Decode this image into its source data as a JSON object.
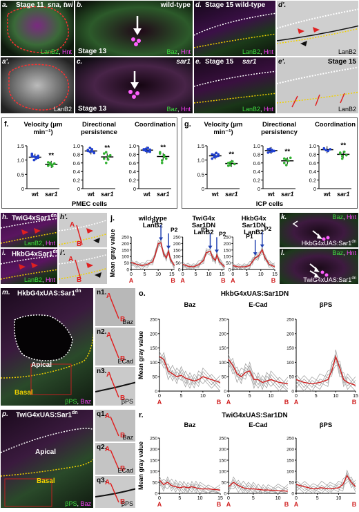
{
  "panels": {
    "a": {
      "letter": "a.",
      "title": "Stage 11",
      "genes": "sna, twi",
      "markers": [
        "LanB2",
        "Hnt"
      ]
    },
    "a2": {
      "letter": "a'.",
      "marker": "LanB2"
    },
    "b": {
      "letter": "b.",
      "title": "wild-type",
      "stage": "Stage 13",
      "markers": [
        "Baz",
        "Hnt"
      ]
    },
    "c": {
      "letter": "c.",
      "title": "sar1",
      "stage": "Stage 13",
      "markers": [
        "Baz",
        "Hnt"
      ]
    },
    "d": {
      "letter": "d.",
      "title": "Stage 15 wild-type",
      "markers": [
        "LanB2",
        "Hnt"
      ]
    },
    "d2": {
      "letter": "d'.",
      "marker": "LanB2"
    },
    "e": {
      "letter": "e.",
      "title": "Stage 15",
      "gene": "sar1",
      "markers": [
        "LanB2",
        "Hnt"
      ]
    },
    "e2": {
      "letter": "e'.",
      "title": "Stage 15",
      "marker": "LanB2"
    },
    "h": {
      "letter": "h.",
      "title": "TwiG4xSar1",
      "sup": "dn",
      "markers": [
        "LanB2",
        "Hnt"
      ]
    },
    "i": {
      "letter": "i.",
      "title": "HkbG4xSar1",
      "sup": "dn",
      "markers": [
        "LanB2",
        "Hnt"
      ]
    },
    "h2": {
      "letter": "h'.",
      "a": "A",
      "b": "B"
    },
    "i2": {
      "letter": "i'.",
      "a": "A",
      "b": "B"
    },
    "k": {
      "letter": "k.",
      "markers": [
        "Baz",
        "Hnt"
      ],
      "genotype": "HkbG4xUAS:Sar1",
      "sup": "dn"
    },
    "l": {
      "letter": "l.",
      "markers": [
        "Baz",
        "Hnt"
      ],
      "genotype": "TwiG4xUAS:Sar1",
      "sup": "dn"
    },
    "m": {
      "letter": "m.",
      "title": "HkbG4xUAS:Sar1",
      "sup": "dn",
      "apical": "Apical",
      "basal": "Basal",
      "markers": [
        "βPS",
        "Baz"
      ]
    },
    "p": {
      "letter": "p.",
      "title": "TwiG4xUAS:Sar1",
      "sup": "dn",
      "apical": "Apical",
      "basal": "Basal",
      "markers": [
        "βPS",
        "Baz"
      ]
    },
    "n": [
      {
        "letter": "n1.",
        "marker": "Baz"
      },
      {
        "letter": "n2.",
        "marker": "ECad"
      },
      {
        "letter": "n3.",
        "marker": "βPS"
      }
    ],
    "q": [
      {
        "letter": "q1.",
        "marker": "Baz"
      },
      {
        "letter": "q2.",
        "marker": "ECad"
      },
      {
        "letter": "q3.",
        "marker": "βPS"
      }
    ],
    "A": "A",
    "B": "B"
  },
  "chart_data": [
    {
      "id": "f",
      "type": "scatter",
      "letter": "f.",
      "group": "PMEC cells",
      "charts": [
        {
          "title": "Velocity (μm min⁻¹)",
          "categories": [
            "wt",
            "sar1"
          ],
          "ylim": [
            0,
            1.5
          ],
          "yticks": [
            0,
            0.5,
            1.0,
            1.5
          ],
          "means": [
            1.1,
            0.85
          ],
          "sig": "**",
          "points": [
            [
              1.18,
              1.12,
              1.05,
              1.15,
              1.22,
              1.0,
              1.1,
              1.08,
              1.14
            ],
            [
              0.92,
              0.85,
              0.78,
              0.88,
              0.8,
              0.9,
              0.84
            ]
          ]
        },
        {
          "title": "Directional persistence",
          "categories": [
            "wt",
            "sar1"
          ],
          "ylim": [
            0,
            1.0
          ],
          "yticks": [
            0,
            0.2,
            0.4,
            0.6,
            0.8,
            1.0
          ],
          "means": [
            0.88,
            0.74
          ],
          "sig": "**",
          "points": [
            [
              0.9,
              0.86,
              0.92,
              0.84,
              0.88,
              0.95,
              0.87,
              0.83,
              0.9
            ],
            [
              0.82,
              0.6,
              0.75,
              0.78,
              0.7,
              0.85,
              0.68
            ]
          ]
        },
        {
          "title": "Coordination",
          "categories": [
            "wt",
            "sar1"
          ],
          "ylim": [
            0,
            1.0
          ],
          "yticks": [
            0,
            0.2,
            0.4,
            0.6,
            0.8,
            1.0
          ],
          "means": [
            0.9,
            0.75
          ],
          "sig": "**",
          "points": [
            [
              0.92,
              0.88,
              0.95,
              0.86,
              0.9,
              0.93,
              0.87,
              0.91
            ],
            [
              0.82,
              0.6,
              0.78,
              0.7,
              0.85,
              0.66,
              0.74
            ]
          ]
        }
      ]
    },
    {
      "id": "g",
      "type": "scatter",
      "letter": "g.",
      "group": "ICP cells",
      "charts": [
        {
          "title": "Velocity (μm min⁻¹)",
          "categories": [
            "wt",
            "sar1"
          ],
          "ylim": [
            0,
            1.5
          ],
          "yticks": [
            0,
            0.5,
            1.0,
            1.5
          ],
          "means": [
            1.15,
            0.88
          ],
          "sig": "**",
          "points": [
            [
              1.2,
              1.1,
              1.25,
              1.15,
              1.05,
              1.18,
              1.12,
              1.2
            ],
            [
              0.9,
              0.82,
              0.95,
              0.86,
              0.8,
              0.92
            ]
          ]
        },
        {
          "title": "Directional persistency",
          "categories": [
            "wt",
            "sar1"
          ],
          "ylim": [
            0,
            1.0
          ],
          "yticks": [
            0,
            0.2,
            0.4,
            0.6,
            0.8,
            1.0
          ],
          "means": [
            0.89,
            0.65
          ],
          "sig": "**",
          "points": [
            [
              0.92,
              0.86,
              0.9,
              0.88,
              0.84,
              0.93,
              0.87
            ],
            [
              0.7,
              0.55,
              0.65,
              0.72,
              0.6,
              0.68
            ]
          ]
        },
        {
          "title": "Coordination",
          "categories": [
            "wt",
            "sar1"
          ],
          "ylim": [
            0,
            1.0
          ],
          "yticks": [
            0,
            0.2,
            0.4,
            0.6,
            0.8,
            1.0
          ],
          "means": [
            0.91,
            0.8
          ],
          "sig": "**",
          "points": [
            [
              0.93,
              0.9,
              0.88,
              0.92,
              0.94,
              0.9
            ],
            [
              0.82,
              0.7,
              0.86,
              0.78,
              0.84,
              0.76
            ]
          ]
        }
      ]
    },
    {
      "id": "j",
      "type": "line",
      "letter": "j.",
      "ylabel": "Mean gray value",
      "ylim": [
        0,
        250
      ],
      "yticks": [
        0,
        50,
        100,
        150,
        200,
        250
      ],
      "xlabel_a": "A",
      "xlabel_b": "B",
      "charts": [
        {
          "title": [
            "wild-type",
            "LanB2"
          ],
          "xticks": [
            0,
            5,
            10,
            15
          ],
          "xmax": 16,
          "peaks": [
            {
              "label": "P1",
              "x": 11
            },
            {
              "label": "P2",
              "x": 13.8
            }
          ],
          "mean": [
            [
              0,
              55
            ],
            [
              2,
              40
            ],
            [
              4,
              30
            ],
            [
              6,
              40
            ],
            [
              8,
              60
            ],
            [
              9,
              120
            ],
            [
              10,
              200
            ],
            [
              11,
              205
            ],
            [
              12,
              120
            ],
            [
              13,
              90
            ],
            [
              13.8,
              140
            ],
            [
              14.5,
              80
            ],
            [
              16,
              30
            ]
          ]
        },
        {
          "title": [
            "TwiG4x",
            "Sar1DN",
            "LanB2"
          ],
          "xticks": [
            0,
            5,
            10,
            15
          ],
          "xmax": 16,
          "peaks": [
            {
              "label": "P1",
              "x": 10.5
            },
            {
              "label": "P2",
              "x": 13
            }
          ],
          "mean": [
            [
              0,
              40
            ],
            [
              2,
              25
            ],
            [
              4,
              20
            ],
            [
              6,
              35
            ],
            [
              8,
              70
            ],
            [
              9,
              130
            ],
            [
              10.5,
              140
            ],
            [
              11.5,
              90
            ],
            [
              12.5,
              70
            ],
            [
              13,
              110
            ],
            [
              14,
              60
            ],
            [
              16,
              20
            ]
          ]
        },
        {
          "title": [
            "HkbG4x",
            "Sar1DN",
            "LanB2"
          ],
          "xticks": [
            0,
            5,
            10,
            15
          ],
          "xmax": 15,
          "peaks": [
            {
              "label": "P1",
              "x": 8
            },
            {
              "label": "P2",
              "x": 10.5
            }
          ],
          "mean": [
            [
              0,
              30
            ],
            [
              2,
              20
            ],
            [
              4,
              20
            ],
            [
              6,
              30
            ],
            [
              7,
              60
            ],
            [
              8,
              90
            ],
            [
              9,
              100
            ],
            [
              10.5,
              150
            ],
            [
              11.5,
              90
            ],
            [
              13,
              40
            ],
            [
              15,
              20
            ]
          ]
        }
      ]
    },
    {
      "id": "o",
      "type": "line",
      "letter": "o.",
      "title": "HkbG4xUAS:Sar1DN",
      "ylabel": "Mean gray value",
      "ylim": [
        0,
        250
      ],
      "yticks": [
        0,
        50,
        100,
        150,
        200,
        250
      ],
      "xlabel_a": "A",
      "xlabel_b": "B",
      "charts": [
        {
          "title": "Baz",
          "xticks": [
            0,
            5,
            10
          ],
          "xmax": 14,
          "mean": [
            [
              0,
              120
            ],
            [
              1,
              110
            ],
            [
              2,
              70
            ],
            [
              3,
              60
            ],
            [
              4,
              50
            ],
            [
              5,
              55
            ],
            [
              6,
              45
            ],
            [
              7,
              40
            ],
            [
              8,
              35
            ],
            [
              9,
              40
            ],
            [
              10,
              50
            ],
            [
              12,
              40
            ],
            [
              14,
              30
            ]
          ]
        },
        {
          "title": "E-Cad",
          "xticks": [
            0,
            5,
            10
          ],
          "xmax": 14,
          "mean": [
            [
              0,
              110
            ],
            [
              1,
              90
            ],
            [
              2,
              60
            ],
            [
              3,
              50
            ],
            [
              4,
              65
            ],
            [
              5,
              70
            ],
            [
              6,
              40
            ],
            [
              7,
              40
            ],
            [
              8,
              30
            ],
            [
              9,
              35
            ],
            [
              10,
              40
            ],
            [
              12,
              30
            ],
            [
              14,
              25
            ]
          ]
        },
        {
          "title": "βPS",
          "xticks": [
            0,
            5,
            10,
            15
          ],
          "xmax": 15,
          "mean": [
            [
              0,
              40
            ],
            [
              2,
              30
            ],
            [
              4,
              25
            ],
            [
              6,
              30
            ],
            [
              8,
              40
            ],
            [
              9,
              70
            ],
            [
              10,
              120
            ],
            [
              11,
              80
            ],
            [
              12,
              40
            ],
            [
              13,
              30
            ],
            [
              15,
              20
            ]
          ]
        }
      ]
    },
    {
      "id": "r",
      "type": "line",
      "letter": "r.",
      "title": "TwiG4xUAS:Sar1DN",
      "ylabel": "Mean gray value",
      "ylim": [
        0,
        250
      ],
      "yticks": [
        0,
        50,
        100,
        150,
        200,
        250
      ],
      "xlabel_a": "A",
      "xlabel_b": "B",
      "charts": [
        {
          "title": "Baz",
          "xticks": [
            0,
            5,
            10,
            15
          ],
          "xmax": 15,
          "mean": [
            [
              0,
              60
            ],
            [
              1,
              40
            ],
            [
              2,
              50
            ],
            [
              3,
              35
            ],
            [
              4,
              30
            ],
            [
              5,
              25
            ],
            [
              6,
              30
            ],
            [
              7,
              25
            ],
            [
              8,
              30
            ],
            [
              9,
              25
            ],
            [
              10,
              20
            ],
            [
              12,
              20
            ],
            [
              15,
              15
            ]
          ]
        },
        {
          "title": "E-Cad",
          "xticks": [
            0,
            5,
            10
          ],
          "xmax": 12,
          "mean": [
            [
              0,
              30
            ],
            [
              1,
              50
            ],
            [
              2,
              35
            ],
            [
              3,
              25
            ],
            [
              4,
              20
            ],
            [
              5,
              20
            ],
            [
              6,
              18
            ],
            [
              7,
              15
            ],
            [
              8,
              15
            ],
            [
              10,
              12
            ],
            [
              12,
              10
            ]
          ]
        },
        {
          "title": "βPS",
          "xticks": [
            0,
            5,
            10
          ],
          "xmax": 14,
          "mean": [
            [
              0,
              40
            ],
            [
              2,
              30
            ],
            [
              4,
              20
            ],
            [
              6,
              25
            ],
            [
              8,
              20
            ],
            [
              10,
              25
            ],
            [
              11,
              40
            ],
            [
              12,
              80
            ],
            [
              13,
              50
            ],
            [
              14,
              30
            ]
          ]
        }
      ]
    }
  ]
}
